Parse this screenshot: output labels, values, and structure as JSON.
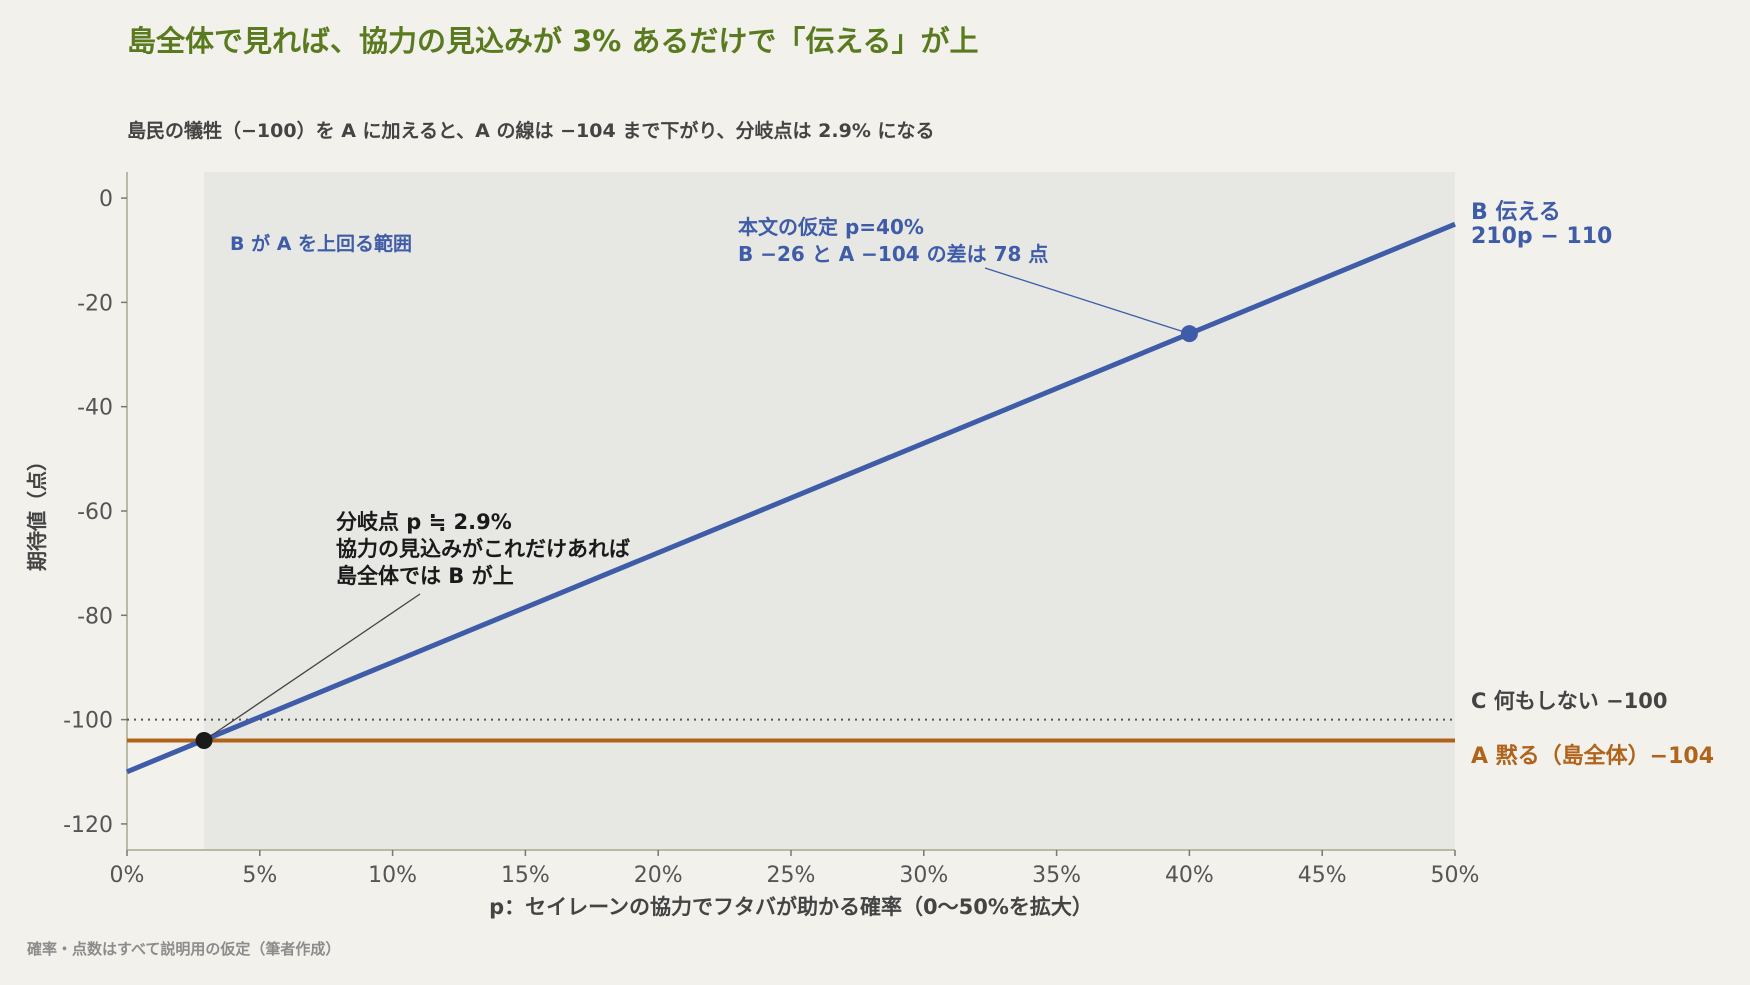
{
  "title": "島全体で見れば、協力の見込みが 3% あるだけで「伝える」が上",
  "subtitle": "島民の犠牲（−100）を A に加えると、A の線は −104 まで下がり、分岐点は 2.9% になる",
  "footnote": "確率・点数はすべて説明用の仮定（筆者作成）",
  "colors": {
    "background": "#f3f1ec",
    "title": "#5a7a1f",
    "series_b": "#3f5ca8",
    "series_a": "#b0631a",
    "series_c": "#555555",
    "shade": "#e7e7e3"
  },
  "chart_data": {
    "type": "line",
    "xlabel": "p：セイレーンの協力でフタバが助かる確率（0〜50%を拡大）",
    "ylabel": "期待値（点）",
    "xlim": [
      0,
      0.5
    ],
    "ylim": [
      -125,
      5
    ],
    "x_ticks": [
      0,
      0.05,
      0.1,
      0.15,
      0.2,
      0.25,
      0.3,
      0.35,
      0.4,
      0.45,
      0.5
    ],
    "x_tick_labels": [
      "0%",
      "5%",
      "10%",
      "15%",
      "20%",
      "25%",
      "30%",
      "35%",
      "40%",
      "45%",
      "50%"
    ],
    "y_ticks": [
      0,
      -20,
      -40,
      -60,
      -80,
      -100,
      -120
    ],
    "y_tick_labels": [
      "0",
      "-20",
      "-40",
      "-60",
      "-80",
      "-100",
      "-120"
    ],
    "grid": false,
    "series": [
      {
        "key": "B",
        "label_line1": "B 伝える",
        "label_line2": "210p − 110",
        "x": [
          0,
          0.5
        ],
        "y": [
          -110,
          -5
        ]
      },
      {
        "key": "A",
        "label": "A 黙る（島全体）−104",
        "x": [
          0,
          0.5
        ],
        "y": [
          -104,
          -104
        ]
      },
      {
        "key": "C",
        "label": "C 何もしない −100",
        "x": [
          0,
          0.5
        ],
        "y": [
          -100,
          -100
        ]
      }
    ],
    "shaded_region": {
      "x": [
        0.029,
        0.5
      ],
      "label": "B が A を上回る範囲"
    },
    "points": [
      {
        "key": "breakeven",
        "x": 0.029,
        "y": -104,
        "annotation": [
          "分岐点 p ≒ 2.9%",
          "協力の見込みがこれだけあれば",
          "島全体では B が上"
        ]
      },
      {
        "key": "assumption",
        "x": 0.4,
        "y": -26,
        "annotation": [
          "本文の仮定 p=40%",
          "B −26 と A −104 の差は 78 点"
        ]
      }
    ]
  }
}
